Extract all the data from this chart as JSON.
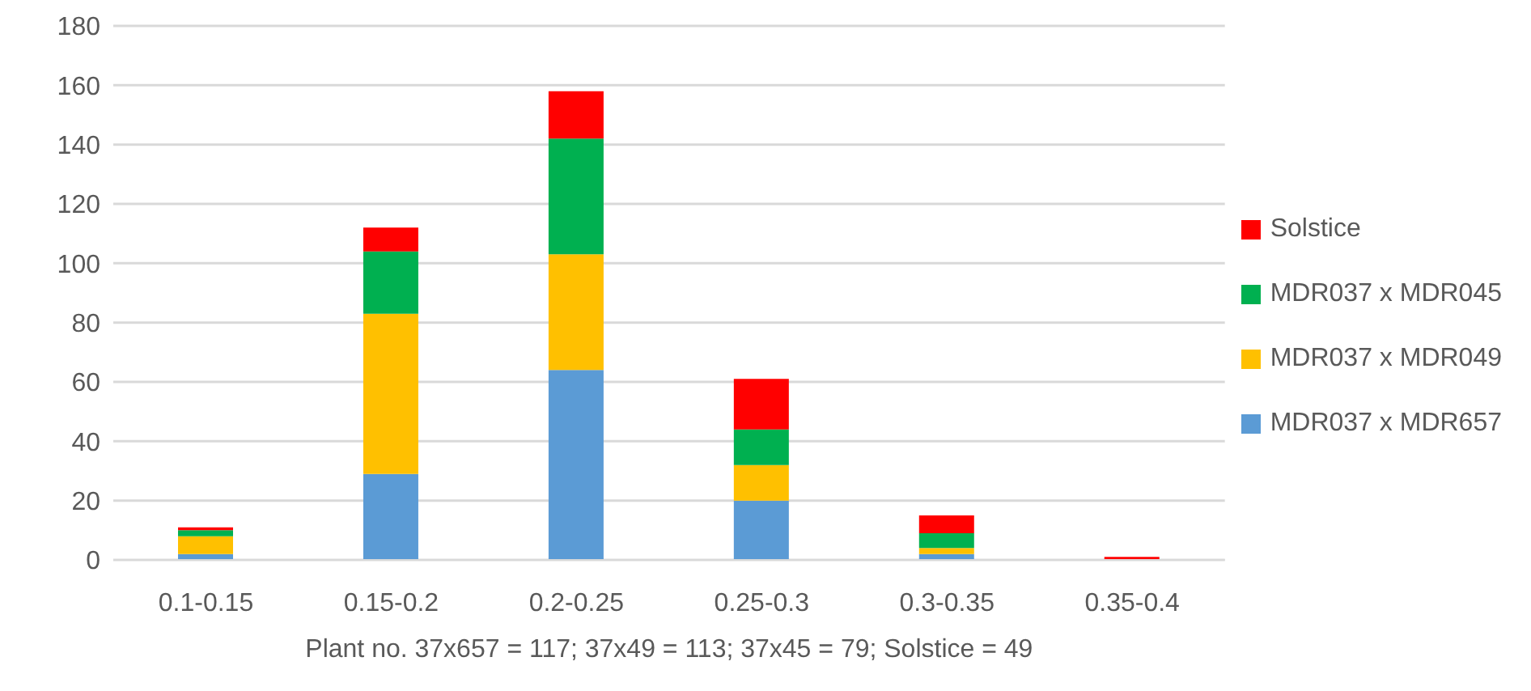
{
  "chart_data": {
    "type": "bar",
    "stacked": true,
    "xlabel": "Plant no. 37x657 = 117; 37x49 = 113; 37x45 = 79; Solstice = 49",
    "categories": [
      "0.1-0.15",
      "0.15-0.2",
      "0.2-0.25",
      "0.25-0.3",
      "0.3-0.35",
      "0.35-0.4"
    ],
    "series": [
      {
        "name": "MDR037 x MDR657",
        "color": "#5b9bd5",
        "values": [
          2,
          29,
          64,
          20,
          2,
          0
        ]
      },
      {
        "name": "MDR037 x MDR049",
        "color": "#ffc000",
        "values": [
          6,
          54,
          39,
          12,
          2,
          0
        ]
      },
      {
        "name": "MDR037 x MDR045",
        "color": "#00b050",
        "values": [
          2,
          21,
          39,
          12,
          5,
          0
        ]
      },
      {
        "name": "Solstice",
        "color": "#ff0000",
        "values": [
          1,
          8,
          16,
          17,
          6,
          1
        ]
      }
    ],
    "ylim": [
      0,
      180
    ],
    "yticks": [
      0,
      20,
      40,
      60,
      80,
      100,
      120,
      140,
      160,
      180
    ],
    "grid": "y",
    "legend": "right"
  }
}
